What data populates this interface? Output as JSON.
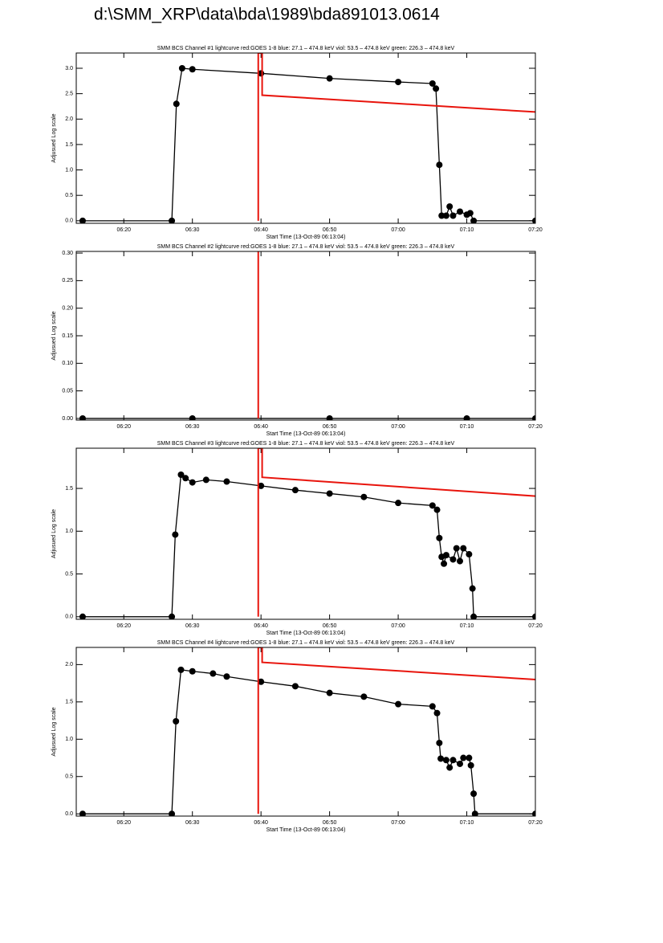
{
  "page_title": "d:\\SMM_XRP\\data\\bda\\1989\\bda891013.0614",
  "chart_data": [
    {
      "type": "line",
      "title": "SMM BCS Channel #1 lightcurve  red:GOES 1-8  blue: 27.1 – 474.8 keV  viol: 53.5 – 474.8 keV  green: 226.3 – 474.8 keV",
      "x_label": "Start Time (13-Oct-89 06:13:04)",
      "y_label": "Adjusued Log scale",
      "xlim": [
        "06:13:04",
        "07:20"
      ],
      "xticks": [
        "06:20",
        "06:30",
        "06:40",
        "06:50",
        "07:00",
        "07:10",
        "07:20"
      ],
      "ylim": [
        -0.05,
        3.3
      ],
      "yticks": [
        {
          "value": 0,
          "label": "0.0"
        },
        0.5,
        {
          "value": 1,
          "label": "1.0"
        },
        1.5,
        {
          "value": 2,
          "label": "2.0"
        },
        2.5,
        {
          "value": 3,
          "label": "3.0"
        }
      ],
      "series": [
        {
          "color": "#000000",
          "marker": true,
          "x": [
            "06:14",
            "06:27",
            "06:27:40",
            "06:28:30",
            "06:30",
            "06:40",
            "06:50",
            "07:00",
            "07:05",
            "07:05:30",
            "07:06",
            "07:06:20",
            "07:07",
            "07:07:30",
            "07:08",
            "07:09",
            "07:10",
            "07:10:30",
            "07:11",
            "07:20"
          ],
          "values": [
            0,
            0,
            2.3,
            3.0,
            2.98,
            2.9,
            2.8,
            2.73,
            2.7,
            2.6,
            1.1,
            0.1,
            0.1,
            0.28,
            0.1,
            0.18,
            0.12,
            0.15,
            0,
            0
          ]
        },
        {
          "color": "#e8140c",
          "marker": false,
          "x": [
            "06:39:36",
            "06:39:36",
            "06:40:10",
            "06:40:10",
            "07:20"
          ],
          "values": [
            0,
            3.3,
            3.3,
            2.47,
            2.14
          ]
        }
      ]
    },
    {
      "type": "line",
      "title": "SMM BCS Channel #2 lightcurve  red:GOES 1-8  blue: 27.1 – 474.8 keV  viol: 53.5 – 474.8 keV  green: 226.3 – 474.8 keV",
      "x_label": "Start Time (13-Oct-89 06:13:04)",
      "y_label": "Adjusued Log scale",
      "xlim": [
        "06:13:04",
        "07:20"
      ],
      "xticks": [
        "06:20",
        "06:30",
        "06:40",
        "06:50",
        "07:00",
        "07:10",
        "07:20"
      ],
      "ylim": [
        -0.003,
        0.303
      ],
      "yticks": [
        {
          "value": 0,
          "label": "0.00"
        },
        {
          "value": 0.05,
          "label": "0.05"
        },
        {
          "value": 0.1,
          "label": "0.10"
        },
        {
          "value": 0.15,
          "label": "0.15"
        },
        {
          "value": 0.2,
          "label": "0.20"
        },
        {
          "value": 0.25,
          "label": "0.25"
        },
        {
          "value": 0.3,
          "label": "0.30"
        }
      ],
      "series": [
        {
          "color": "#000000",
          "marker": true,
          "x": [
            "06:14",
            "06:30",
            "06:50",
            "07:10",
            "07:20"
          ],
          "values": [
            0,
            0,
            0,
            0,
            0
          ]
        },
        {
          "color": "#e8140c",
          "marker": false,
          "x": [
            "06:39:36",
            "06:39:36"
          ],
          "values": [
            0,
            0.303
          ]
        }
      ]
    },
    {
      "type": "line",
      "title": "SMM BCS Channel #3 lightcurve  red:GOES 1-8  blue: 27.1 – 474.8 keV  viol: 53.5 – 474.8 keV  green: 226.3 – 474.8 keV",
      "x_label": "Start Time (13-Oct-89 06:13:04)",
      "y_label": "Adjusued Log scale",
      "xlim": [
        "06:13:04",
        "07:20"
      ],
      "xticks": [
        "06:20",
        "06:30",
        "06:40",
        "06:50",
        "07:00",
        "07:10",
        "07:20"
      ],
      "ylim": [
        -0.03,
        1.97
      ],
      "yticks": [
        {
          "value": 0,
          "label": "0.0"
        },
        0.5,
        {
          "value": 1,
          "label": "1.0"
        },
        1.5
      ],
      "series": [
        {
          "color": "#000000",
          "marker": true,
          "x": [
            "06:14",
            "06:27",
            "06:27:30",
            "06:28:20",
            "06:29",
            "06:30",
            "06:32",
            "06:35",
            "06:40",
            "06:45",
            "06:50",
            "06:55",
            "07:00",
            "07:05",
            "07:05:40",
            "07:06",
            "07:06:20",
            "07:06:40",
            "07:07",
            "07:08",
            "07:08:30",
            "07:09",
            "07:09:30",
            "07:10:20",
            "07:10:50",
            "07:11",
            "07:20"
          ],
          "values": [
            0,
            0,
            0.96,
            1.66,
            1.62,
            1.57,
            1.6,
            1.58,
            1.53,
            1.48,
            1.44,
            1.4,
            1.33,
            1.3,
            1.25,
            0.92,
            0.7,
            0.62,
            0.72,
            0.67,
            0.8,
            0.65,
            0.8,
            0.73,
            0.33,
            0,
            0
          ]
        },
        {
          "color": "#e8140c",
          "marker": false,
          "x": [
            "06:39:36",
            "06:39:36",
            "06:40:10",
            "06:40:10",
            "07:20"
          ],
          "values": [
            0,
            1.97,
            1.97,
            1.63,
            1.41
          ]
        }
      ]
    },
    {
      "type": "line",
      "title": "SMM BCS Channel #4 lightcurve  red:GOES 1-8  blue: 27.1 – 474.8 keV  viol: 53.5 – 474.8 keV  green: 226.3 – 474.8 keV",
      "x_label": "Start Time (13-Oct-89 06:13:04)",
      "y_label": "Adjusued Log scale",
      "xlim": [
        "06:13:04",
        "07:20"
      ],
      "xticks": [
        "06:20",
        "06:30",
        "06:40",
        "06:50",
        "07:00",
        "07:10",
        "07:20"
      ],
      "ylim": [
        -0.03,
        2.23
      ],
      "yticks": [
        {
          "value": 0,
          "label": "0.0"
        },
        0.5,
        {
          "value": 1,
          "label": "1.0"
        },
        1.5,
        {
          "value": 2,
          "label": "2.0"
        }
      ],
      "series": [
        {
          "color": "#000000",
          "marker": true,
          "x": [
            "06:14",
            "06:27",
            "06:27:36",
            "06:28:20",
            "06:30",
            "06:33",
            "06:35",
            "06:40",
            "06:45",
            "06:50",
            "06:55",
            "07:00",
            "07:05",
            "07:05:40",
            "07:06",
            "07:06:12",
            "07:07",
            "07:07:30",
            "07:08",
            "07:09",
            "07:09:30",
            "07:10:20",
            "07:10:36",
            "07:11",
            "07:11:12",
            "07:20"
          ],
          "values": [
            0,
            0,
            1.24,
            1.93,
            1.91,
            1.88,
            1.84,
            1.77,
            1.71,
            1.62,
            1.57,
            1.47,
            1.44,
            1.35,
            0.95,
            0.74,
            0.72,
            0.62,
            0.72,
            0.67,
            0.75,
            0.75,
            0.65,
            0.27,
            0,
            0
          ]
        },
        {
          "color": "#e8140c",
          "marker": false,
          "x": [
            "06:39:36",
            "06:39:36",
            "06:40:10",
            "06:40:10",
            "07:20"
          ],
          "values": [
            0,
            2.23,
            2.23,
            2.03,
            1.8
          ]
        }
      ]
    }
  ]
}
